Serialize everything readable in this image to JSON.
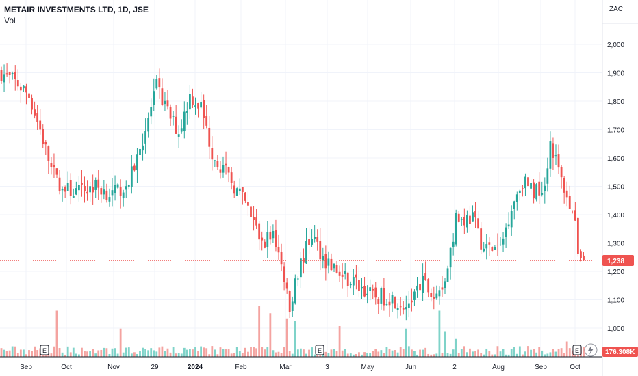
{
  "header": {
    "title": "METAIR INVESTMENTS LTD, 1D, JSE",
    "vol_label": "Vol",
    "currency": "ZAC"
  },
  "badges": {
    "price_badge": "1,238",
    "volume_badge": "176.308K",
    "earnings_marker": "E"
  },
  "colors": {
    "up": "#26a69a",
    "down": "#ef5350",
    "vol_up": "#7fd3c9",
    "vol_down": "#f4a3a0",
    "price_line": "#ef5350"
  },
  "chart_data": {
    "type": "candlestick",
    "title": "METAIR INVESTMENTS LTD, 1D, JSE",
    "x_ticks": [
      "Sep",
      "Oct",
      "Nov",
      "29",
      "2024",
      "Feb",
      "Mar",
      "3",
      "May",
      "Jun",
      "2",
      "Aug",
      "Sep",
      "Oct"
    ],
    "y_ticks": [
      1000,
      1100,
      1200,
      1300,
      1400,
      1500,
      1600,
      1700,
      1800,
      1900,
      2000
    ],
    "ylim": [
      930,
      2080
    ],
    "last_price": 1238,
    "last_volume": "176.308K",
    "earnings_markers": [
      "Sep",
      "Mar",
      "Oct"
    ],
    "price_path": [
      {
        "t": 0,
        "p": 1900
      },
      {
        "t": 6,
        "p": 1860
      },
      {
        "t": 10,
        "p": 1820
      },
      {
        "t": 14,
        "p": 1700
      },
      {
        "t": 18,
        "p": 1560
      },
      {
        "t": 22,
        "p": 1490
      },
      {
        "t": 28,
        "p": 1480
      },
      {
        "t": 34,
        "p": 1500
      },
      {
        "t": 40,
        "p": 1470
      },
      {
        "t": 46,
        "p": 1510
      },
      {
        "t": 52,
        "p": 1700
      },
      {
        "t": 56,
        "p": 1850
      },
      {
        "t": 60,
        "p": 1760
      },
      {
        "t": 64,
        "p": 1690
      },
      {
        "t": 68,
        "p": 1820
      },
      {
        "t": 72,
        "p": 1780
      },
      {
        "t": 76,
        "p": 1620
      },
      {
        "t": 82,
        "p": 1530
      },
      {
        "t": 88,
        "p": 1440
      },
      {
        "t": 94,
        "p": 1300
      },
      {
        "t": 98,
        "p": 1340
      },
      {
        "t": 102,
        "p": 1180
      },
      {
        "t": 104,
        "p": 1080
      },
      {
        "t": 108,
        "p": 1230
      },
      {
        "t": 112,
        "p": 1330
      },
      {
        "t": 116,
        "p": 1250
      },
      {
        "t": 122,
        "p": 1190
      },
      {
        "t": 128,
        "p": 1160
      },
      {
        "t": 134,
        "p": 1110
      },
      {
        "t": 140,
        "p": 1110
      },
      {
        "t": 146,
        "p": 1080
      },
      {
        "t": 152,
        "p": 1160
      },
      {
        "t": 156,
        "p": 1110
      },
      {
        "t": 160,
        "p": 1170
      },
      {
        "t": 164,
        "p": 1380
      },
      {
        "t": 170,
        "p": 1390
      },
      {
        "t": 174,
        "p": 1280
      },
      {
        "t": 180,
        "p": 1280
      },
      {
        "t": 184,
        "p": 1430
      },
      {
        "t": 188,
        "p": 1520
      },
      {
        "t": 192,
        "p": 1480
      },
      {
        "t": 196,
        "p": 1510
      },
      {
        "t": 198,
        "p": 1660
      },
      {
        "t": 202,
        "p": 1520
      },
      {
        "t": 206,
        "p": 1420
      },
      {
        "t": 208,
        "p": 1280
      },
      {
        "t": 210,
        "p": 1238
      }
    ],
    "volume_spikes": [
      {
        "t": 20,
        "v": 0.9
      },
      {
        "t": 43,
        "v": 0.55
      },
      {
        "t": 93,
        "v": 1.0
      },
      {
        "t": 97,
        "v": 0.85
      },
      {
        "t": 103,
        "v": 0.75
      },
      {
        "t": 106,
        "v": 0.7
      },
      {
        "t": 122,
        "v": 0.6
      },
      {
        "t": 146,
        "v": 0.55
      },
      {
        "t": 158,
        "v": 0.9
      },
      {
        "t": 160,
        "v": 0.5
      },
      {
        "t": 164,
        "v": 0.35
      },
      {
        "t": 204,
        "v": 0.3
      }
    ]
  }
}
